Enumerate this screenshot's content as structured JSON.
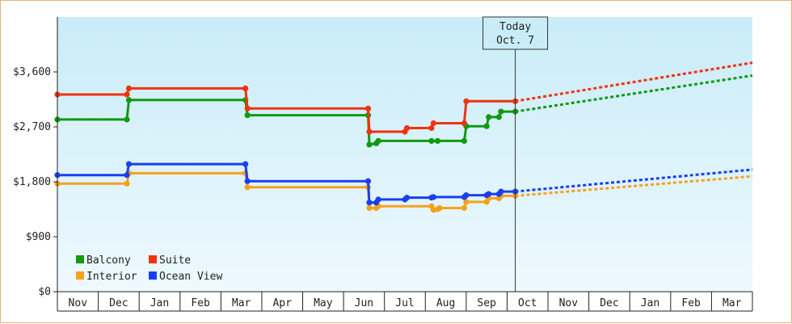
{
  "chart_data": {
    "type": "line",
    "title": "",
    "xlabel": "",
    "ylabel": "",
    "ylim": [
      0,
      4500
    ],
    "y_ticks": [
      {
        "value": 0,
        "label": "$0"
      },
      {
        "value": 900,
        "label": "$900"
      },
      {
        "value": 1800,
        "label": "$1,800"
      },
      {
        "value": 2700,
        "label": "$2,700"
      },
      {
        "value": 3600,
        "label": "$3,600"
      }
    ],
    "x_months": [
      "Nov",
      "Dec",
      "Jan",
      "Feb",
      "Mar",
      "Apr",
      "May",
      "Jun",
      "Jul",
      "Aug",
      "Sep",
      "Oct",
      "Nov",
      "Dec",
      "Jan",
      "Feb",
      "Mar"
    ],
    "xlim": [
      0,
      17
    ],
    "today": {
      "label_line1": "Today",
      "label_line2": "Oct. 7",
      "x": 11.2
    },
    "grid": false,
    "background_gradient": [
      "#c9ecf8",
      "#eef9fe"
    ],
    "legend_placement": "bottom-left",
    "series": [
      {
        "name": "Balcony",
        "color": "#119911",
        "points": [
          [
            0,
            2820
          ],
          [
            1.7,
            2820
          ],
          [
            1.75,
            3140
          ],
          [
            4.6,
            3140
          ],
          [
            4.65,
            2890
          ],
          [
            7.6,
            2890
          ],
          [
            7.63,
            2410
          ],
          [
            7.8,
            2430
          ],
          [
            7.85,
            2470
          ],
          [
            9.15,
            2470
          ],
          [
            9.3,
            2470
          ],
          [
            9.95,
            2470
          ],
          [
            10.0,
            2710
          ],
          [
            10.5,
            2710
          ],
          [
            10.55,
            2860
          ],
          [
            10.8,
            2860
          ],
          [
            10.85,
            2950
          ],
          [
            11.2,
            2950
          ]
        ],
        "markers": [
          [
            0,
            2820
          ],
          [
            1.7,
            2820
          ],
          [
            1.75,
            3140
          ],
          [
            4.6,
            3140
          ],
          [
            4.65,
            2890
          ],
          [
            7.6,
            2890
          ],
          [
            7.63,
            2410
          ],
          [
            7.8,
            2430
          ],
          [
            7.85,
            2470
          ],
          [
            9.15,
            2470
          ],
          [
            9.3,
            2470
          ],
          [
            9.95,
            2470
          ],
          [
            10.0,
            2710
          ],
          [
            10.5,
            2710
          ],
          [
            10.55,
            2860
          ],
          [
            10.8,
            2860
          ],
          [
            10.85,
            2950
          ],
          [
            11.2,
            2950
          ]
        ],
        "forecast": [
          [
            11.2,
            2950
          ],
          [
            17,
            3540
          ]
        ]
      },
      {
        "name": "Suite",
        "color": "#ee3311",
        "points": [
          [
            0,
            3230
          ],
          [
            1.7,
            3230
          ],
          [
            1.75,
            3330
          ],
          [
            4.6,
            3330
          ],
          [
            4.65,
            3000
          ],
          [
            7.6,
            3000
          ],
          [
            7.63,
            2620
          ],
          [
            8.5,
            2620
          ],
          [
            8.55,
            2680
          ],
          [
            9.15,
            2680
          ],
          [
            9.2,
            2760
          ],
          [
            9.95,
            2760
          ],
          [
            10.0,
            3120
          ],
          [
            11.2,
            3120
          ]
        ],
        "markers": [
          [
            0,
            3230
          ],
          [
            1.7,
            3230
          ],
          [
            1.75,
            3330
          ],
          [
            4.6,
            3330
          ],
          [
            4.65,
            3000
          ],
          [
            7.6,
            3000
          ],
          [
            7.63,
            2620
          ],
          [
            8.5,
            2620
          ],
          [
            8.55,
            2680
          ],
          [
            9.15,
            2680
          ],
          [
            9.2,
            2760
          ],
          [
            9.95,
            2760
          ],
          [
            10.0,
            3120
          ],
          [
            11.2,
            3120
          ]
        ],
        "forecast": [
          [
            11.2,
            3120
          ],
          [
            17,
            3750
          ]
        ]
      },
      {
        "name": "Interior",
        "color": "#f5a21b",
        "points": [
          [
            0,
            1770
          ],
          [
            1.7,
            1770
          ],
          [
            1.75,
            1940
          ],
          [
            4.6,
            1940
          ],
          [
            4.65,
            1710
          ],
          [
            7.6,
            1710
          ],
          [
            7.63,
            1370
          ],
          [
            7.8,
            1370
          ],
          [
            7.85,
            1400
          ],
          [
            9.15,
            1400
          ],
          [
            9.2,
            1340
          ],
          [
            9.3,
            1350
          ],
          [
            9.35,
            1370
          ],
          [
            9.95,
            1370
          ],
          [
            10.0,
            1470
          ],
          [
            10.5,
            1470
          ],
          [
            10.55,
            1530
          ],
          [
            10.8,
            1530
          ],
          [
            10.85,
            1570
          ],
          [
            11.2,
            1570
          ]
        ],
        "markers": [
          [
            0,
            1770
          ],
          [
            1.7,
            1770
          ],
          [
            1.75,
            1940
          ],
          [
            4.6,
            1940
          ],
          [
            4.65,
            1710
          ],
          [
            7.6,
            1710
          ],
          [
            7.63,
            1370
          ],
          [
            7.8,
            1370
          ],
          [
            7.85,
            1400
          ],
          [
            9.15,
            1400
          ],
          [
            9.2,
            1340
          ],
          [
            9.3,
            1350
          ],
          [
            9.35,
            1370
          ],
          [
            9.95,
            1370
          ],
          [
            10.0,
            1470
          ],
          [
            10.5,
            1470
          ],
          [
            10.55,
            1530
          ],
          [
            10.8,
            1530
          ],
          [
            10.85,
            1570
          ],
          [
            11.2,
            1570
          ]
        ],
        "forecast": [
          [
            11.2,
            1570
          ],
          [
            17,
            1890
          ]
        ]
      },
      {
        "name": "Ocean View",
        "color": "#1a3ff0",
        "points": [
          [
            0,
            1910
          ],
          [
            1.7,
            1910
          ],
          [
            1.75,
            2090
          ],
          [
            4.6,
            2090
          ],
          [
            4.65,
            1810
          ],
          [
            7.6,
            1810
          ],
          [
            7.63,
            1460
          ],
          [
            7.8,
            1460
          ],
          [
            7.85,
            1510
          ],
          [
            8.5,
            1510
          ],
          [
            8.55,
            1540
          ],
          [
            9.15,
            1540
          ],
          [
            9.2,
            1550
          ],
          [
            9.95,
            1550
          ],
          [
            10.0,
            1580
          ],
          [
            10.5,
            1580
          ],
          [
            10.55,
            1600
          ],
          [
            10.8,
            1600
          ],
          [
            10.85,
            1640
          ],
          [
            11.2,
            1640
          ]
        ],
        "markers": [
          [
            0,
            1910
          ],
          [
            1.7,
            1910
          ],
          [
            1.75,
            2090
          ],
          [
            4.6,
            2090
          ],
          [
            4.65,
            1810
          ],
          [
            7.6,
            1810
          ],
          [
            7.63,
            1460
          ],
          [
            7.8,
            1460
          ],
          [
            7.85,
            1510
          ],
          [
            8.5,
            1510
          ],
          [
            8.55,
            1540
          ],
          [
            9.15,
            1540
          ],
          [
            9.2,
            1550
          ],
          [
            9.95,
            1550
          ],
          [
            10.0,
            1580
          ],
          [
            10.5,
            1580
          ],
          [
            10.55,
            1600
          ],
          [
            10.8,
            1600
          ],
          [
            10.85,
            1640
          ],
          [
            11.2,
            1640
          ]
        ],
        "forecast": [
          [
            11.2,
            1640
          ],
          [
            17,
            2000
          ]
        ]
      }
    ]
  }
}
